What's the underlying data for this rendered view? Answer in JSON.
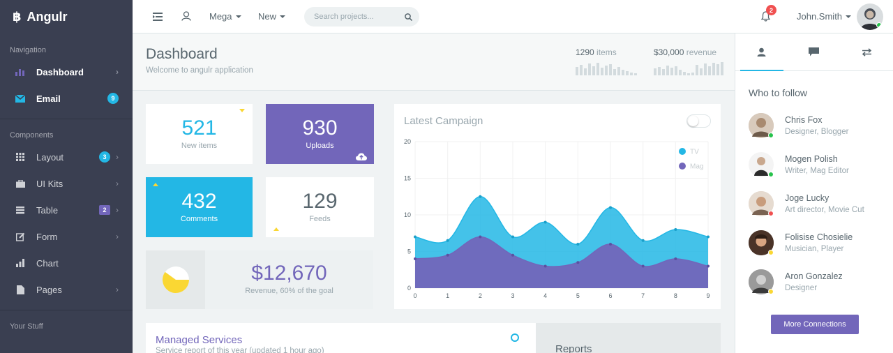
{
  "brand": {
    "name": "Angulr"
  },
  "sidebar": {
    "sections": [
      {
        "title": "Navigation"
      },
      {
        "title": "Components"
      },
      {
        "title": "Your Stuff"
      }
    ],
    "items": [
      {
        "label": "Dashboard",
        "icon": "bar-chart-icon"
      },
      {
        "label": "Email",
        "icon": "envelope-icon",
        "badge": "9",
        "badge_color": "#23b7e5"
      },
      {
        "label": "Layout",
        "icon": "grid-icon",
        "badge": "3",
        "badge_color": "#23b7e5"
      },
      {
        "label": "UI Kits",
        "icon": "briefcase-icon"
      },
      {
        "label": "Table",
        "icon": "list-icon",
        "badge": "2",
        "badge_color": "#7266ba"
      },
      {
        "label": "Form",
        "icon": "edit-icon"
      },
      {
        "label": "Chart",
        "icon": "chart-icon"
      },
      {
        "label": "Pages",
        "icon": "file-icon"
      }
    ]
  },
  "header": {
    "mega_label": "Mega",
    "new_label": "New",
    "search_placeholder": "Search projects...",
    "notification_count": "2",
    "user_name": "John.Smith"
  },
  "page": {
    "title": "Dashboard",
    "subtitle": "Welcome to angulr application",
    "stats": [
      {
        "value": "1290",
        "label": "items"
      },
      {
        "value": "$30,000",
        "label": "revenue"
      }
    ]
  },
  "tiles": [
    {
      "value": "521",
      "label": "New items"
    },
    {
      "value": "930",
      "label": "Uploads"
    },
    {
      "value": "432",
      "label": "Comments"
    },
    {
      "value": "129",
      "label": "Feeds"
    }
  ],
  "revenue": {
    "value": "$12,670",
    "label": "Revenue, 60% of the goal",
    "progress": 0.6
  },
  "campaign": {
    "title": "Latest Campaign",
    "toggle_on": false
  },
  "chart_data": {
    "type": "area",
    "x": [
      0,
      1,
      2,
      3,
      4,
      5,
      6,
      7,
      8,
      9
    ],
    "ylim": [
      0,
      20
    ],
    "yticks": [
      0,
      5,
      10,
      15,
      20
    ],
    "grid": true,
    "legend": "top-right",
    "series": [
      {
        "name": "TV",
        "color": "#23b7e5",
        "values": [
          7,
          6.5,
          12.5,
          7,
          9,
          6,
          11,
          6.5,
          8,
          7
        ]
      },
      {
        "name": "Mag",
        "color": "#7266ba",
        "values": [
          4,
          4.5,
          7,
          4.5,
          3,
          3.5,
          6,
          3,
          4,
          3
        ]
      }
    ]
  },
  "managed": {
    "title": "Managed Services",
    "subtitle": "Service report of this year (updated 1 hour ago)"
  },
  "reports": {
    "title": "Reports"
  },
  "rightpanel": {
    "title": "Who to follow",
    "people": [
      {
        "name": "Chris Fox",
        "role": "Designer, Blogger",
        "status_color": "#27c24c"
      },
      {
        "name": "Mogen Polish",
        "role": "Writer, Mag Editor",
        "status_color": "#27c24c"
      },
      {
        "name": "Joge Lucky",
        "role": "Art director, Movie Cut",
        "status_color": "#f05050"
      },
      {
        "name": "Folisise Chosielie",
        "role": "Musician, Player",
        "status_color": "#fad733"
      },
      {
        "name": "Aron Gonzalez",
        "role": "Designer",
        "status_color": "#fad733"
      }
    ],
    "more_label": "More Connections"
  }
}
